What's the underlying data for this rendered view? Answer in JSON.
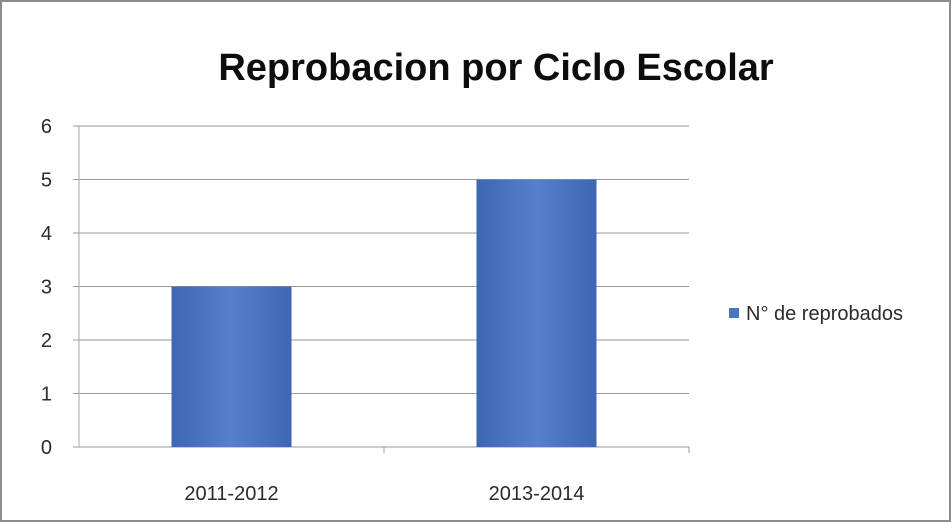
{
  "chart_data": {
    "type": "bar",
    "title": "Reprobacion por Ciclo Escolar",
    "categories": [
      "2011-2012",
      "2013-2014"
    ],
    "series": [
      {
        "name": "N° de reprobados",
        "values": [
          3,
          5
        ],
        "color": "#4a74c0"
      }
    ],
    "ylim": [
      0,
      6
    ],
    "yticks": [
      "0",
      "1",
      "2",
      "3",
      "4",
      "5",
      "6"
    ],
    "grid": true,
    "legend_position": "right"
  }
}
